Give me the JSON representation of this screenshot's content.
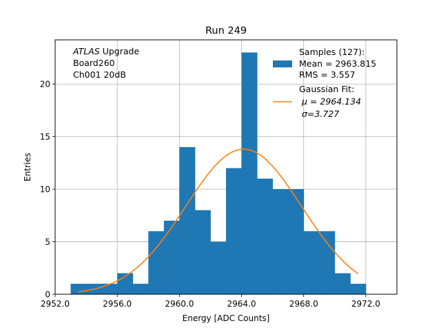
{
  "chart_data": {
    "type": "histogram",
    "title": "Run 249",
    "xlabel": "Energy [ADC Counts]",
    "ylabel": "Entries",
    "xlim": [
      2952.0,
      2974.0
    ],
    "ylim": [
      0,
      24.2
    ],
    "xticks": [
      2952.0,
      2956.0,
      2960.0,
      2964.0,
      2968.0,
      2972.0
    ],
    "xtick_labels": [
      "2952.0",
      "2956.0",
      "2960.0",
      "2964.0",
      "2968.0",
      "2972.0"
    ],
    "yticks": [
      0,
      5,
      10,
      15,
      20
    ],
    "ytick_labels": [
      "0",
      "5",
      "10",
      "15",
      "20"
    ],
    "grid": true,
    "bar_color": "#1f77b4",
    "fit_color": "#ff7f0e",
    "bins": {
      "edges": [
        2953.0,
        2954.0,
        2955.0,
        2956.0,
        2957.0,
        2958.0,
        2959.0,
        2960.0,
        2961.0,
        2962.0,
        2963.0,
        2964.0,
        2965.0,
        2966.0,
        2967.0,
        2968.0,
        2969.0,
        2970.0,
        2971.0,
        2972.0
      ],
      "counts": [
        1,
        1,
        1,
        2,
        1,
        6,
        7,
        14,
        8,
        5,
        12,
        23,
        11,
        10,
        10,
        6,
        6,
        2,
        1
      ]
    },
    "fit": {
      "type": "gaussian",
      "mu": 2964.134,
      "sigma": 3.727,
      "amplitude": 13.8,
      "x_range": [
        2953.5,
        2971.5
      ]
    },
    "annotation": {
      "italic": "ATLAS",
      "line1_rest": " Upgrade",
      "line2": " Board260",
      "line3": " Ch001 20dB"
    },
    "legend": {
      "placement": "top-right",
      "samples_lines": [
        "Samples (127):",
        " Mean = 2963.815",
        " RMS = 3.557"
      ],
      "fit_lines": [
        "Gaussian Fit:",
        "μ = 2964.134",
        "σ=3.727"
      ]
    }
  }
}
